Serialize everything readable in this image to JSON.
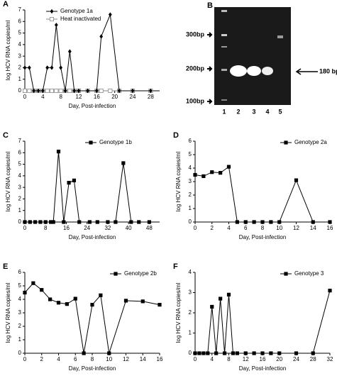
{
  "chart_data": [
    {
      "type": "line",
      "panel": "A",
      "xlabel": "Day, Post-infection",
      "ylabel": "log HCV RNA copies/ml",
      "legend": "upper left",
      "x": [
        0,
        1,
        2,
        3,
        4,
        5,
        6,
        7,
        8,
        9,
        10,
        11,
        12,
        14,
        16,
        17,
        19,
        21,
        24,
        28
      ],
      "series": [
        {
          "name": "Genotype 1a",
          "color": "#000000",
          "marker": "diamond",
          "values": [
            2,
            2,
            0,
            0,
            0,
            2,
            2,
            5.7,
            2,
            0,
            3.4,
            0,
            0,
            0,
            0,
            4.7,
            6.6,
            0,
            0,
            0
          ]
        },
        {
          "name": "Heat inactivated",
          "color": "#888888",
          "marker": "open-square",
          "values": [
            0,
            0,
            0,
            0,
            0,
            0,
            0,
            0,
            0,
            0,
            0,
            0,
            0,
            0,
            0,
            0,
            0,
            0,
            0,
            0
          ]
        }
      ],
      "xlim": [
        0,
        30
      ],
      "ylim": [
        0,
        7
      ],
      "xticks": [
        0,
        4,
        8,
        12,
        16,
        20,
        24,
        28
      ],
      "yticks": [
        0,
        1,
        2,
        3,
        4,
        5,
        6,
        7
      ]
    },
    {
      "type": "line",
      "panel": "C",
      "xlabel": "Day, Post-infection",
      "ylabel": "log HCV RNA copies/ml",
      "legend": "upper center",
      "x": [
        0,
        2,
        4,
        6,
        8,
        10,
        11,
        13,
        15,
        17,
        19,
        21,
        25,
        28,
        32,
        35,
        38,
        41,
        44,
        48
      ],
      "series": [
        {
          "name": "Genotype 1b",
          "color": "#000000",
          "marker": "square",
          "values": [
            0,
            0,
            0,
            0,
            0,
            0,
            0,
            6.1,
            0,
            3.4,
            3.6,
            0,
            0,
            0,
            0,
            0,
            5.1,
            0,
            0,
            0
          ]
        }
      ],
      "xlim": [
        0,
        52
      ],
      "ylim": [
        0,
        7
      ],
      "xticks": [
        0,
        8,
        16,
        24,
        32,
        40,
        48
      ],
      "yticks": [
        0,
        1,
        2,
        3,
        4,
        5,
        6,
        7
      ]
    },
    {
      "type": "line",
      "panel": "D",
      "xlabel": "Day, Post-infection",
      "ylabel": "log HCV RNA copies/ml",
      "legend": "upper right",
      "x": [
        0,
        1,
        2,
        3,
        4,
        5,
        6,
        7,
        8,
        9,
        10,
        12,
        14,
        16
      ],
      "series": [
        {
          "name": "Genotype 2a",
          "color": "#000000",
          "marker": "square",
          "values": [
            3.5,
            3.4,
            3.7,
            3.65,
            4.1,
            0,
            0,
            0,
            0,
            0,
            0,
            3.1,
            0,
            0
          ]
        }
      ],
      "xlim": [
        0,
        16
      ],
      "ylim": [
        0,
        6
      ],
      "xticks": [
        0,
        2,
        4,
        6,
        8,
        10,
        12,
        14,
        16
      ],
      "yticks": [
        0,
        1,
        2,
        3,
        4,
        5,
        6
      ]
    },
    {
      "type": "line",
      "panel": "E",
      "xlabel": "Day, Post-infection",
      "ylabel": "log HCV RNA copies/ml",
      "legend": "upper right",
      "x": [
        0,
        1,
        2,
        3,
        4,
        5,
        6,
        7,
        8,
        9,
        10,
        12,
        14,
        16
      ],
      "series": [
        {
          "name": "Genotype 2b",
          "color": "#000000",
          "marker": "square",
          "values": [
            4.5,
            5.2,
            4.7,
            4.0,
            3.75,
            3.65,
            4.05,
            0,
            3.6,
            4.3,
            0,
            3.9,
            3.85,
            3.6
          ]
        }
      ],
      "xlim": [
        0,
        16
      ],
      "ylim": [
        0,
        6
      ],
      "xticks": [
        0,
        2,
        4,
        6,
        8,
        10,
        12,
        14,
        16
      ],
      "yticks": [
        0,
        1,
        2,
        3,
        4,
        5,
        6
      ]
    },
    {
      "type": "line",
      "panel": "F",
      "xlabel": "Day, Post-infection",
      "ylabel": "log HCV RNA copies/ml",
      "legend": "upper right",
      "x": [
        0,
        1,
        2,
        3,
        4,
        5,
        6,
        7,
        8,
        9,
        10,
        12,
        14,
        16,
        18,
        20,
        24,
        28,
        32
      ],
      "series": [
        {
          "name": "Genotype 3",
          "color": "#000000",
          "marker": "square",
          "values": [
            0,
            0,
            0,
            0,
            2.3,
            0,
            2.7,
            0,
            2.9,
            0,
            0,
            0,
            0,
            0,
            0,
            0,
            0,
            0,
            3.1
          ]
        }
      ],
      "xlim": [
        0,
        32
      ],
      "ylim": [
        0,
        4
      ],
      "xticks": [
        0,
        4,
        8,
        12,
        16,
        20,
        24,
        28,
        32
      ],
      "yticks": [
        0,
        1,
        2,
        3,
        4
      ]
    }
  ],
  "gel": {
    "panel": "B",
    "markers": [
      "300bp",
      "200bp",
      "100bp"
    ],
    "product": "180 bp",
    "lanes": [
      "1",
      "2",
      "3",
      "4",
      "5"
    ]
  }
}
